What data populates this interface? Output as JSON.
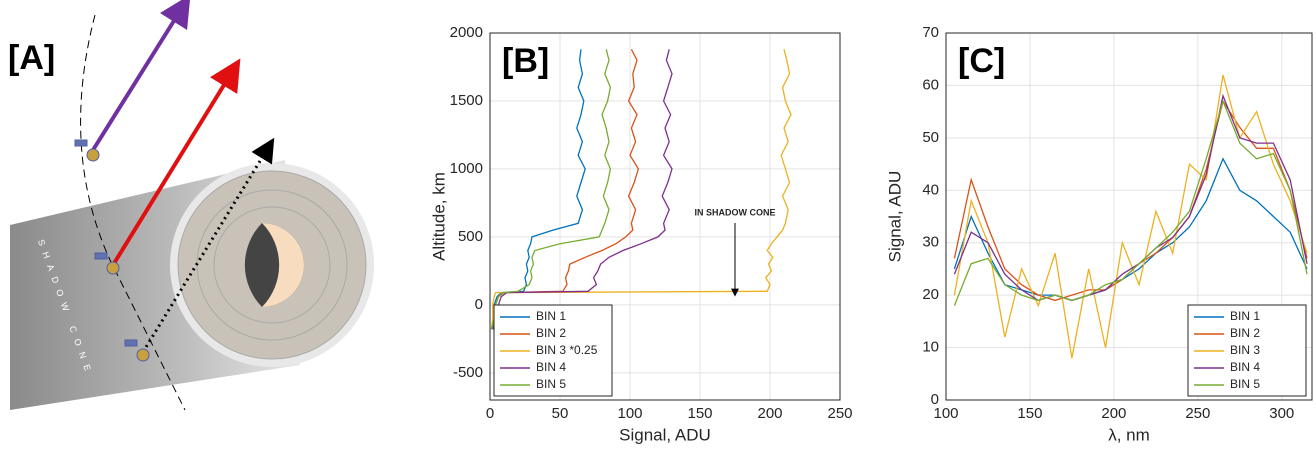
{
  "panel_a": {
    "label": "[A]",
    "text": "SHADOW CONE"
  },
  "chart_data": [
    {
      "type": "line",
      "label": "[B]",
      "xlabel": "Signal, ADU",
      "ylabel": "Altitude, km",
      "annotation": "IN SHADOW CONE",
      "xlim": [
        0,
        250
      ],
      "xticks": [
        0,
        50,
        100,
        150,
        200,
        250
      ],
      "ylim": [
        -700,
        2000
      ],
      "yticks": [
        -500,
        0,
        500,
        1000,
        1500,
        2000
      ],
      "grid": true,
      "legend": "lower left",
      "y": [
        -180,
        -100,
        0,
        60,
        90,
        100,
        150,
        200,
        250,
        300,
        350,
        400,
        450,
        500,
        550,
        600,
        700,
        800,
        900,
        1000,
        1100,
        1200,
        1300,
        1400,
        1500,
        1600,
        1700,
        1800,
        1880
      ],
      "series": [
        {
          "name": "BIN 1",
          "color": "#0072BD",
          "values": [
            2,
            4,
            3,
            5,
            8,
            24,
            26,
            25,
            27,
            26,
            28,
            27,
            29,
            30,
            45,
            63,
            66,
            62,
            65,
            68,
            63,
            66,
            62,
            65,
            67,
            63,
            66,
            64,
            65
          ]
        },
        {
          "name": "BIN 2",
          "color": "#D95319",
          "values": [
            1,
            3,
            4,
            6,
            10,
            52,
            55,
            54,
            56,
            57,
            68,
            80,
            90,
            97,
            102,
            101,
            104,
            99,
            103,
            106,
            100,
            104,
            101,
            105,
            99,
            103,
            102,
            105,
            101
          ]
        },
        {
          "name": "BIN 3 *0.25",
          "color": "#EDB120",
          "values": [
            1,
            2,
            2,
            3,
            4,
            198,
            200,
            197,
            201,
            199,
            202,
            198,
            201,
            205,
            209,
            211,
            213,
            209,
            214,
            211,
            208,
            213,
            210,
            215,
            211,
            209,
            214,
            212,
            210
          ]
        },
        {
          "name": "BIN 4",
          "color": "#7E2F8E",
          "values": [
            2,
            5,
            6,
            8,
            12,
            70,
            76,
            74,
            77,
            79,
            85,
            95,
            108,
            120,
            125,
            124,
            128,
            123,
            127,
            130,
            124,
            128,
            125,
            129,
            124,
            127,
            130,
            126,
            128
          ]
        },
        {
          "name": "BIN 5",
          "color": "#77AC30",
          "values": [
            1,
            3,
            4,
            6,
            9,
            20,
            28,
            30,
            29,
            31,
            30,
            32,
            50,
            78,
            80,
            82,
            85,
            81,
            84,
            86,
            82,
            85,
            83,
            80,
            84,
            86,
            82,
            85,
            83
          ]
        }
      ]
    },
    {
      "type": "line",
      "label": "[C]",
      "xlabel": "λ, nm",
      "ylabel": "Signal, ADU",
      "xlim": [
        100,
        318
      ],
      "xticks": [
        100,
        150,
        200,
        250,
        300
      ],
      "ylim": [
        0,
        70
      ],
      "yticks": [
        0,
        10,
        20,
        30,
        40,
        50,
        60,
        70
      ],
      "grid": true,
      "legend": "lower right",
      "x": [
        105,
        115,
        125,
        135,
        145,
        155,
        165,
        175,
        185,
        195,
        205,
        215,
        225,
        235,
        245,
        255,
        265,
        275,
        285,
        295,
        305,
        315
      ],
      "series": [
        {
          "name": "BIN 1",
          "color": "#0072BD",
          "values": [
            25,
            35,
            28,
            22,
            21,
            20,
            20,
            19,
            20,
            21,
            23,
            25,
            28,
            30,
            33,
            38,
            46,
            40,
            38,
            35,
            32,
            25
          ]
        },
        {
          "name": "BIN 2",
          "color": "#D95319",
          "values": [
            27,
            42,
            33,
            25,
            22,
            20,
            19,
            20,
            21,
            21,
            23,
            26,
            28,
            31,
            35,
            44,
            57,
            52,
            48,
            48,
            40,
            27
          ]
        },
        {
          "name": "BIN 3",
          "color": "#EDB120",
          "values": [
            20,
            38,
            30,
            12,
            25,
            18,
            28,
            8,
            25,
            10,
            30,
            22,
            36,
            28,
            45,
            42,
            62,
            50,
            55,
            45,
            38,
            28
          ]
        },
        {
          "name": "BIN 4",
          "color": "#7E2F8E",
          "values": [
            24,
            32,
            30,
            24,
            21,
            19,
            20,
            19,
            20,
            21,
            24,
            26,
            29,
            31,
            35,
            43,
            58,
            50,
            49,
            49,
            42,
            26
          ]
        },
        {
          "name": "BIN 5",
          "color": "#77AC30",
          "values": [
            18,
            26,
            27,
            22,
            20,
            19,
            20,
            19,
            20,
            22,
            23,
            26,
            29,
            32,
            36,
            46,
            57,
            49,
            46,
            47,
            40,
            24
          ]
        }
      ]
    }
  ]
}
